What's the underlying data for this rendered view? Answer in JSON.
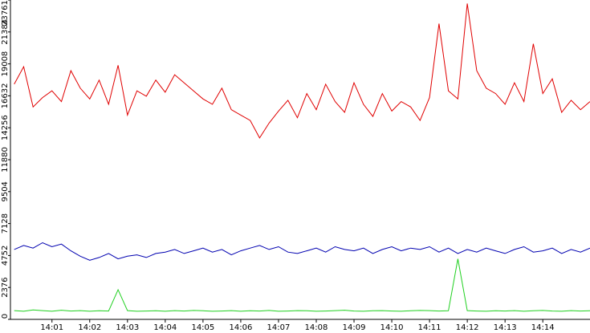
{
  "chart_data": {
    "type": "line",
    "x": [
      0,
      0.25,
      0.5,
      0.75,
      1,
      1.25,
      1.5,
      1.75,
      2,
      2.25,
      2.5,
      2.75,
      3,
      3.25,
      3.5,
      3.75,
      4,
      4.25,
      4.5,
      4.75,
      5,
      5.25,
      5.5,
      5.75,
      6,
      6.25,
      6.5,
      6.75,
      7,
      7.25,
      7.5,
      7.75,
      8,
      8.25,
      8.5,
      8.75,
      9,
      9.25,
      9.5,
      9.75,
      10,
      10.25,
      10.5,
      10.75,
      11,
      11.25,
      11.5,
      11.75,
      12,
      12.25,
      12.5,
      12.75,
      13,
      13.25,
      13.5,
      13.75,
      14,
      14.25,
      14.5,
      14.75,
      15,
      15.25
    ],
    "series": [
      {
        "color": "#e00000",
        "values": [
          17500,
          18800,
          15800,
          16500,
          17000,
          16200,
          18500,
          17200,
          16400,
          17800,
          16000,
          18900,
          15200,
          17000,
          16600,
          17800,
          16900,
          18200,
          17600,
          17000,
          16400,
          16000,
          17200,
          15600,
          15200,
          14800,
          13500,
          14600,
          15500,
          16300,
          15000,
          16800,
          15600,
          17500,
          16200,
          15400,
          17600,
          16000,
          15100,
          16800,
          15500,
          16200,
          15800,
          14800,
          16500,
          22000,
          17000,
          16400,
          23500,
          18500,
          17200,
          16800,
          16000,
          17600,
          16200,
          20500,
          16800,
          17900,
          15400,
          16300,
          15600,
          16200
        ]
      },
      {
        "color": "#0000b0",
        "values": [
          5200,
          5500,
          5300,
          5700,
          5400,
          5600,
          5100,
          4700,
          4400,
          4600,
          4900,
          4500,
          4700,
          4800,
          4600,
          4900,
          5000,
          5200,
          4900,
          5100,
          5300,
          5000,
          5200,
          4800,
          5100,
          5300,
          5500,
          5200,
          5400,
          5000,
          4900,
          5100,
          5300,
          5000,
          5400,
          5200,
          5100,
          5300,
          4900,
          5200,
          5400,
          5100,
          5300,
          5200,
          5400,
          5000,
          5300,
          4900,
          5200,
          5000,
          5300,
          5100,
          4900,
          5200,
          5400,
          5000,
          5100,
          5300,
          4900,
          5200,
          5000,
          5300
        ]
      },
      {
        "color": "#20d020",
        "values": [
          650,
          600,
          700,
          650,
          600,
          680,
          620,
          650,
          600,
          640,
          620,
          2200,
          650,
          600,
          620,
          640,
          600,
          650,
          620,
          660,
          640,
          600,
          620,
          650,
          600,
          640,
          620,
          660,
          600,
          620,
          650,
          640,
          600,
          620,
          650,
          680,
          620,
          600,
          640,
          650,
          620,
          600,
          640,
          660,
          650,
          620,
          640,
          4500,
          650,
          620,
          600,
          640,
          620,
          650,
          600,
          640,
          660,
          620,
          600,
          650,
          620,
          640
        ]
      }
    ],
    "xlim": [
      -0.1,
      15.25
    ],
    "xticks": [
      {
        "value": 1,
        "label": "14:01"
      },
      {
        "value": 2,
        "label": "14:02"
      },
      {
        "value": 3,
        "label": "14:03"
      },
      {
        "value": 4,
        "label": "14:04"
      },
      {
        "value": 5,
        "label": "14:05"
      },
      {
        "value": 6,
        "label": "14:06"
      },
      {
        "value": 7,
        "label": "14:07"
      },
      {
        "value": 8,
        "label": "14:08"
      },
      {
        "value": 9,
        "label": "14:09"
      },
      {
        "value": 10,
        "label": "14:10"
      },
      {
        "value": 11,
        "label": "14:11"
      },
      {
        "value": 12,
        "label": "14:12"
      },
      {
        "value": 13,
        "label": "14:13"
      },
      {
        "value": 14,
        "label": "14:14"
      }
    ],
    "ylim": [
      0,
      23761
    ],
    "yticks": [
      0,
      2376,
      4752,
      7128,
      9504,
      11880,
      14256,
      16632,
      19008,
      21384,
      23761
    ]
  }
}
